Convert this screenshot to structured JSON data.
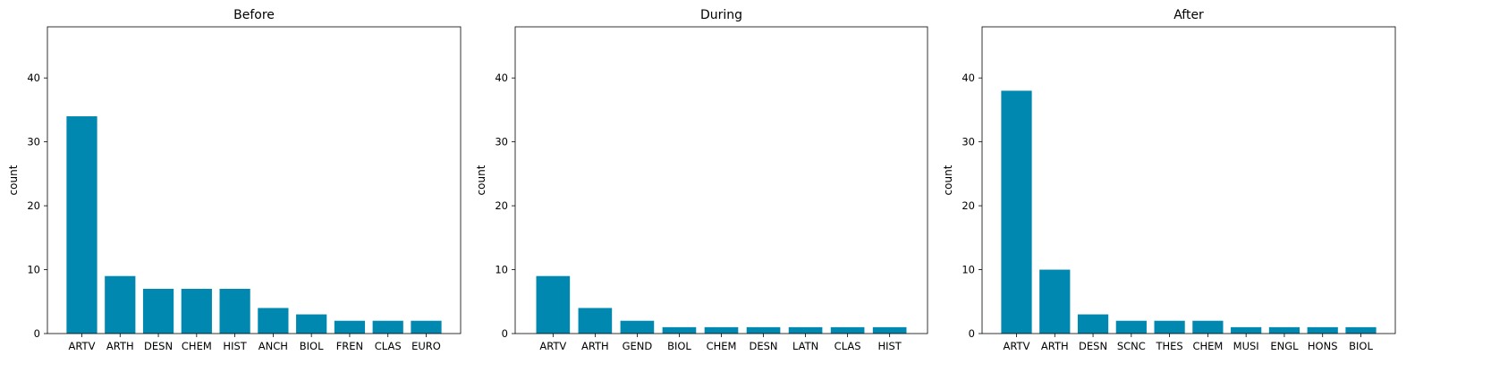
{
  "chart_data": [
    {
      "type": "bar",
      "title": "Before",
      "xlabel": "",
      "ylabel": "count",
      "ylim": [
        0,
        48
      ],
      "yticks": [
        0,
        10,
        20,
        30,
        40
      ],
      "bar_color": "#0088b0",
      "categories": [
        "ARTV",
        "ARTH",
        "DESN",
        "CHEM",
        "HIST",
        "ANCH",
        "BIOL",
        "FREN",
        "CLAS",
        "EURO"
      ],
      "values": [
        34,
        9,
        7,
        7,
        7,
        4,
        3,
        2,
        2,
        2
      ]
    },
    {
      "type": "bar",
      "title": "During",
      "xlabel": "",
      "ylabel": "count",
      "ylim": [
        0,
        48
      ],
      "yticks": [
        0,
        10,
        20,
        30,
        40
      ],
      "bar_color": "#0088b0",
      "categories": [
        "ARTV",
        "ARTH",
        "GEND",
        "BIOL",
        "CHEM",
        "DESN",
        "LATN",
        "CLAS",
        "HIST"
      ],
      "values": [
        9,
        4,
        2,
        1,
        1,
        1,
        1,
        1,
        1
      ]
    },
    {
      "type": "bar",
      "title": "After",
      "xlabel": "",
      "ylabel": "count",
      "ylim": [
        0,
        48
      ],
      "yticks": [
        0,
        10,
        20,
        30,
        40
      ],
      "bar_color": "#0088b0",
      "categories": [
        "ARTV",
        "ARTH",
        "DESN",
        "SCNC",
        "THES",
        "CHEM",
        "MUSI",
        "ENGL",
        "HONS",
        "BIOL"
      ],
      "values": [
        38,
        10,
        3,
        2,
        2,
        2,
        1,
        1,
        1,
        1
      ]
    }
  ]
}
